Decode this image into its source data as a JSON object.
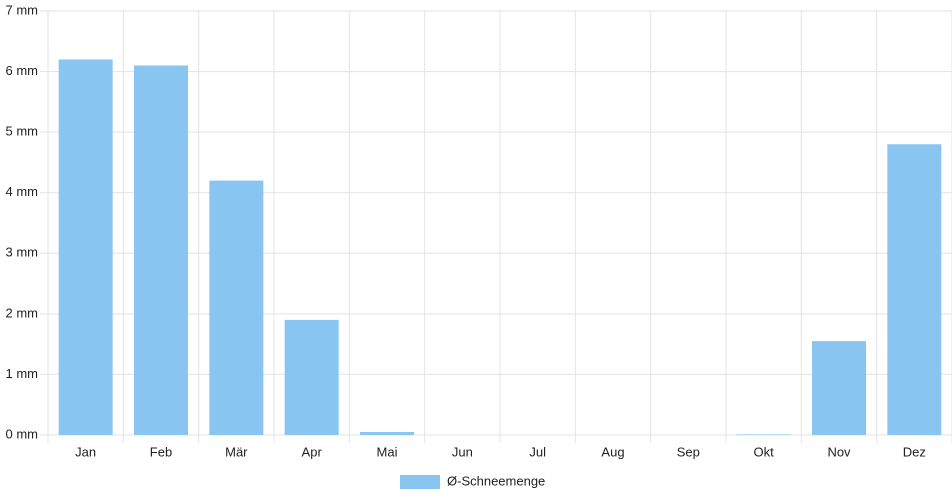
{
  "chart_data": {
    "type": "bar",
    "categories": [
      "Jan",
      "Feb",
      "Mär",
      "Apr",
      "Mai",
      "Jun",
      "Jul",
      "Aug",
      "Sep",
      "Okt",
      "Nov",
      "Dez"
    ],
    "series": [
      {
        "name": "Ø-Schneemenge",
        "color": "#88c6f1",
        "values": [
          6.2,
          6.1,
          4.2,
          1.9,
          0.05,
          0,
          0,
          0,
          0,
          0.01,
          1.55,
          4.8
        ]
      }
    ],
    "ylim": [
      0,
      7
    ],
    "yticks": [
      {
        "value": 0,
        "label": "0 mm"
      },
      {
        "value": 1,
        "label": "1 mm"
      },
      {
        "value": 2,
        "label": "2 mm"
      },
      {
        "value": 3,
        "label": "3 mm"
      },
      {
        "value": 4,
        "label": "4 mm"
      },
      {
        "value": 5,
        "label": "5 mm"
      },
      {
        "value": 6,
        "label": "6 mm"
      },
      {
        "value": 7,
        "label": "7 mm"
      }
    ],
    "grid": true,
    "legend": "bottom"
  }
}
